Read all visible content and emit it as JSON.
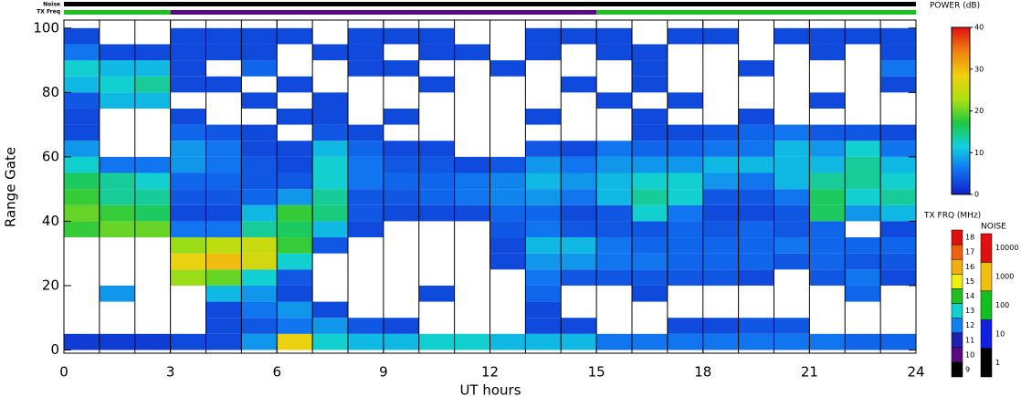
{
  "chart_data": {
    "type": "heatmap",
    "xlabel": "UT hours",
    "ylabel": "Range Gate",
    "xlim": [
      0,
      24
    ],
    "xticks": [
      0,
      3,
      6,
      9,
      12,
      15,
      18,
      21,
      24
    ],
    "hour_lines": [
      1,
      2,
      3,
      4,
      5,
      6,
      7,
      8,
      9,
      10,
      11,
      12,
      13,
      14,
      15,
      16,
      17,
      18,
      19,
      20,
      21,
      22,
      23
    ],
    "ylim": [
      -1,
      102.5
    ],
    "yticks": [
      0,
      20,
      40,
      60,
      80,
      100
    ],
    "x_edges": [
      0,
      1,
      2,
      3,
      4,
      5,
      6,
      7,
      8,
      9,
      10,
      11,
      12,
      13,
      14,
      15,
      16,
      17,
      18,
      19,
      20,
      21,
      22,
      23,
      24
    ],
    "y_edges": [
      0,
      5,
      10,
      15,
      20,
      25,
      30,
      35,
      40,
      45,
      50,
      55,
      60,
      65,
      70,
      75,
      80,
      85,
      90,
      95,
      100
    ],
    "z": [
      [
        2,
        2,
        2,
        3,
        3,
        8,
        28,
        12,
        10,
        10,
        12,
        12,
        10,
        10,
        10,
        6,
        6,
        6,
        6,
        6,
        6,
        6,
        5,
        5
      ],
      [
        null,
        null,
        null,
        null,
        3,
        4,
        6,
        8,
        4,
        3,
        null,
        null,
        null,
        3,
        3,
        null,
        null,
        3,
        3,
        4,
        4,
        null,
        null,
        null
      ],
      [
        null,
        null,
        null,
        null,
        3,
        6,
        8,
        3,
        null,
        null,
        null,
        null,
        null,
        3,
        null,
        null,
        null,
        null,
        null,
        null,
        null,
        null,
        null,
        null
      ],
      [
        null,
        8,
        null,
        null,
        10,
        8,
        3,
        null,
        null,
        null,
        3,
        null,
        null,
        5,
        null,
        null,
        3,
        null,
        null,
        null,
        null,
        null,
        5,
        null
      ],
      [
        null,
        null,
        null,
        22,
        20,
        12,
        4,
        null,
        null,
        null,
        null,
        null,
        null,
        6,
        4,
        4,
        4,
        4,
        4,
        3,
        null,
        4,
        6,
        3
      ],
      [
        null,
        null,
        null,
        28,
        30,
        26,
        12,
        null,
        null,
        null,
        null,
        null,
        3,
        8,
        8,
        6,
        6,
        5,
        5,
        5,
        4,
        5,
        4,
        4
      ],
      [
        null,
        null,
        null,
        22,
        24,
        25,
        18,
        4,
        null,
        null,
        null,
        null,
        3,
        10,
        10,
        6,
        5,
        5,
        5,
        5,
        6,
        5,
        5,
        5
      ],
      [
        18,
        20,
        20,
        6,
        6,
        14,
        16,
        10,
        3,
        null,
        null,
        null,
        4,
        6,
        4,
        4,
        4,
        5,
        4,
        5,
        4,
        5,
        null,
        3
      ],
      [
        20,
        18,
        16,
        3,
        3,
        10,
        18,
        15,
        4,
        3,
        3,
        3,
        5,
        5,
        3,
        4,
        12,
        6,
        3,
        3,
        4,
        16,
        8,
        10
      ],
      [
        18,
        14,
        14,
        4,
        4,
        5,
        8,
        14,
        4,
        4,
        5,
        6,
        7,
        8,
        6,
        10,
        14,
        12,
        4,
        4,
        6,
        16,
        12,
        14
      ],
      [
        16,
        14,
        12,
        5,
        5,
        4,
        4,
        12,
        6,
        5,
        5,
        6,
        7,
        10,
        8,
        10,
        12,
        12,
        8,
        6,
        10,
        14,
        14,
        12
      ],
      [
        12,
        6,
        6,
        8,
        6,
        4,
        3,
        12,
        6,
        4,
        4,
        3,
        4,
        8,
        6,
        8,
        8,
        8,
        10,
        10,
        10,
        10,
        14,
        10
      ],
      [
        8,
        null,
        null,
        8,
        6,
        3,
        3,
        10,
        5,
        3,
        3,
        null,
        null,
        4,
        3,
        6,
        5,
        5,
        6,
        6,
        10,
        8,
        12,
        6
      ],
      [
        3,
        null,
        null,
        5,
        4,
        3,
        null,
        4,
        3,
        null,
        null,
        null,
        null,
        null,
        null,
        null,
        3,
        3,
        4,
        5,
        6,
        4,
        4,
        3
      ],
      [
        3,
        null,
        null,
        3,
        null,
        null,
        3,
        3,
        null,
        3,
        null,
        null,
        null,
        3,
        null,
        null,
        3,
        null,
        null,
        3,
        null,
        null,
        null,
        null
      ],
      [
        4,
        10,
        10,
        null,
        null,
        3,
        null,
        3,
        null,
        null,
        null,
        null,
        null,
        null,
        null,
        3,
        null,
        3,
        null,
        null,
        null,
        3,
        null,
        null
      ],
      [
        10,
        12,
        14,
        3,
        3,
        null,
        3,
        null,
        null,
        null,
        3,
        null,
        null,
        null,
        3,
        null,
        3,
        null,
        null,
        null,
        null,
        null,
        null,
        3
      ],
      [
        12,
        10,
        10,
        3,
        null,
        5,
        null,
        null,
        3,
        3,
        null,
        null,
        3,
        null,
        null,
        null,
        3,
        null,
        null,
        3,
        null,
        null,
        null,
        6
      ],
      [
        6,
        3,
        3,
        3,
        3,
        3,
        null,
        3,
        3,
        null,
        3,
        3,
        null,
        3,
        null,
        3,
        3,
        null,
        null,
        null,
        null,
        3,
        null,
        3
      ],
      [
        3,
        null,
        null,
        3,
        3,
        3,
        3,
        null,
        3,
        3,
        3,
        null,
        null,
        3,
        3,
        3,
        null,
        3,
        3,
        null,
        3,
        3,
        3,
        3
      ]
    ],
    "zlim": [
      0,
      40
    ],
    "colormap": [
      "#1020c8",
      "#1070f0",
      "#10d0e0",
      "#20c840",
      "#b0e010",
      "#f0d010",
      "#f08010",
      "#e01010"
    ],
    "power_colorbar": {
      "label": "POWER (dB)",
      "ticks": [
        0,
        10,
        20,
        30,
        40
      ]
    },
    "noise_bar": {
      "label": "Noise",
      "x": [
        0,
        24
      ],
      "values": [
        1
      ]
    },
    "txfreq_bar": {
      "label": "TX Freq",
      "x": [
        0,
        3,
        15,
        24
      ],
      "values": [
        14,
        10,
        14
      ]
    },
    "tx_colorbar": {
      "label": "TX FRQ (MHz)",
      "ticks": [
        9,
        10,
        11,
        12,
        13,
        14,
        15,
        16,
        17,
        18
      ],
      "colors": [
        "#000000",
        "#5a0a80",
        "#2020b0",
        "#1080f0",
        "#10d0d0",
        "#20c020",
        "#f0f010",
        "#f0b010",
        "#f06010",
        "#e01010"
      ]
    },
    "noise_colorbar": {
      "label": "NOISE",
      "ticks": [
        1,
        10,
        100,
        1000,
        10000
      ],
      "colors": [
        "#000000",
        "#1020e0",
        "#10c020",
        "#f0c010",
        "#e01010"
      ]
    }
  }
}
